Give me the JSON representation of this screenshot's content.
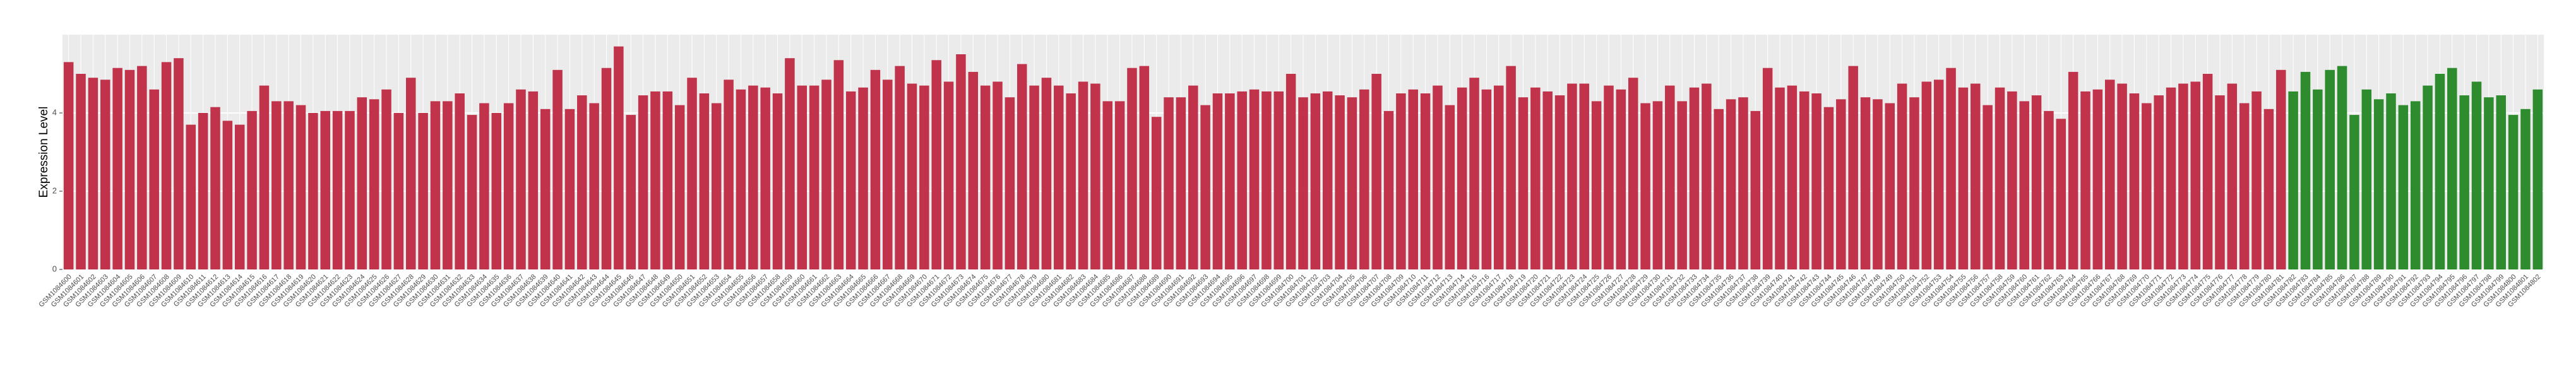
{
  "chart_data": {
    "type": "bar",
    "y_label": "Expression Level",
    "categories": [
      "GSM1084600",
      "GSM1084601",
      "GSM1084602",
      "GSM1084603",
      "GSM1084604",
      "GSM1084605",
      "GSM1084606",
      "GSM1084607",
      "GSM1084608",
      "GSM1084609",
      "GSM1084610",
      "GSM1084611",
      "GSM1084612",
      "GSM1084613",
      "GSM1084614",
      "GSM1084615",
      "GSM1084616",
      "GSM1084617",
      "GSM1084618",
      "GSM1084619",
      "GSM1084620",
      "GSM1084621",
      "GSM1084622",
      "GSM1084623",
      "GSM1084624",
      "GSM1084625",
      "GSM1084626",
      "GSM1084627",
      "GSM1084628",
      "GSM1084629",
      "GSM1084630",
      "GSM1084631",
      "GSM1084632",
      "GSM1084633",
      "GSM1084634",
      "GSM1084635",
      "GSM1084636",
      "GSM1084637",
      "GSM1084638",
      "GSM1084639",
      "GSM1084640",
      "GSM1084641",
      "GSM1084642",
      "GSM1084643",
      "GSM1084644",
      "GSM1084645",
      "GSM1084646",
      "GSM1084647",
      "GSM1084648",
      "GSM1084649",
      "GSM1084650",
      "GSM1084651",
      "GSM1084652",
      "GSM1084653",
      "GSM1084654",
      "GSM1084655",
      "GSM1084656",
      "GSM1084657",
      "GSM1084658",
      "GSM1084659",
      "GSM1084660",
      "GSM1084661",
      "GSM1084662",
      "GSM1084663",
      "GSM1084664",
      "GSM1084665",
      "GSM1084666",
      "GSM1084667",
      "GSM1084668",
      "GSM1084669",
      "GSM1084670",
      "GSM1084671",
      "GSM1084672",
      "GSM1084673",
      "GSM1084674",
      "GSM1084675",
      "GSM1084676",
      "GSM1084677",
      "GSM1084678",
      "GSM1084679",
      "GSM1084680",
      "GSM1084681",
      "GSM1084682",
      "GSM1084683",
      "GSM1084684",
      "GSM1084685",
      "GSM1084686",
      "GSM1084687",
      "GSM1084688",
      "GSM1084689",
      "GSM1084690",
      "GSM1084691",
      "GSM1084692",
      "GSM1084693",
      "GSM1084694",
      "GSM1084695",
      "GSM1084696",
      "GSM1084697",
      "GSM1084698",
      "GSM1084699",
      "GSM1084700",
      "GSM1084701",
      "GSM1084702",
      "GSM1084703",
      "GSM1084704",
      "GSM1084705",
      "GSM1084706",
      "GSM1084707",
      "GSM1084708",
      "GSM1084709",
      "GSM1084710",
      "GSM1084711",
      "GSM1084712",
      "GSM1084713",
      "GSM1084714",
      "GSM1084715",
      "GSM1084716",
      "GSM1084717",
      "GSM1084718",
      "GSM1084719",
      "GSM1084720",
      "GSM1084721",
      "GSM1084722",
      "GSM1084723",
      "GSM1084724",
      "GSM1084725",
      "GSM1084726",
      "GSM1084727",
      "GSM1084728",
      "GSM1084729",
      "GSM1084730",
      "GSM1084731",
      "GSM1084732",
      "GSM1084733",
      "GSM1084734",
      "GSM1084735",
      "GSM1084736",
      "GSM1084737",
      "GSM1084738",
      "GSM1084739",
      "GSM1084740",
      "GSM1084741",
      "GSM1084742",
      "GSM1084743",
      "GSM1084744",
      "GSM1084745",
      "GSM1084746",
      "GSM1084747",
      "GSM1084748",
      "GSM1084749",
      "GSM1084750",
      "GSM1084751",
      "GSM1084752",
      "GSM1084753",
      "GSM1084754",
      "GSM1084755",
      "GSM1084756",
      "GSM1084757",
      "GSM1084758",
      "GSM1084759",
      "GSM1084760",
      "GSM1084761",
      "GSM1084762",
      "GSM1084763",
      "GSM1084764",
      "GSM1084765",
      "GSM1084766",
      "GSM1084767",
      "GSM1084768",
      "GSM1084769",
      "GSM1084770",
      "GSM1084771",
      "GSM1084772",
      "GSM1084773",
      "GSM1084774",
      "GSM1084775",
      "GSM1084776",
      "GSM1084777",
      "GSM1084778",
      "GSM1084779",
      "GSM1084780",
      "GSM1084781",
      "GSM1084782",
      "GSM1084783",
      "GSM1084784",
      "GSM1084785",
      "GSM1084786",
      "GSM1084787",
      "GSM1084788",
      "GSM1084789",
      "GSM1084790",
      "GSM1084791",
      "GSM1084792",
      "GSM1084793",
      "GSM1084794",
      "GSM1084795",
      "GSM1084796",
      "GSM1084797",
      "GSM1084798",
      "GSM1084799",
      "GSM1084800",
      "GSM1084801",
      "GSM1084802"
    ],
    "values": [
      5.3,
      5.0,
      4.9,
      4.85,
      5.15,
      5.1,
      5.2,
      4.6,
      5.3,
      5.4,
      3.7,
      4.0,
      4.15,
      3.8,
      3.7,
      4.05,
      4.7,
      4.3,
      4.3,
      4.2,
      4.0,
      4.05,
      4.05,
      4.05,
      4.4,
      4.35,
      4.6,
      4.0,
      4.9,
      4.0,
      4.3,
      4.3,
      4.5,
      3.95,
      4.25,
      4.0,
      4.25,
      4.6,
      4.55,
      4.1,
      5.1,
      4.1,
      4.45,
      4.25,
      5.15,
      5.7,
      3.95,
      4.45,
      4.55,
      4.55,
      4.2,
      4.9,
      4.5,
      4.25,
      4.85,
      4.6,
      4.7,
      4.65,
      4.5,
      5.4,
      4.7,
      4.7,
      4.85,
      5.35,
      4.55,
      4.65,
      5.1,
      4.85,
      5.2,
      4.75,
      4.7,
      5.35,
      4.8,
      5.5,
      5.05,
      4.7,
      4.8,
      4.4,
      5.25,
      4.7,
      4.9,
      4.7,
      4.5,
      4.8,
      4.75,
      4.3,
      4.3,
      5.15,
      5.2,
      3.9,
      4.4,
      4.4,
      4.7,
      4.2,
      4.5,
      4.5,
      4.55,
      4.6,
      4.55,
      4.55,
      5.0,
      4.4,
      4.5,
      4.55,
      4.45,
      4.4,
      4.6,
      5.0,
      4.05,
      4.5,
      4.6,
      4.5,
      4.7,
      4.2,
      4.65,
      4.9,
      4.6,
      4.7,
      5.2,
      4.4,
      4.65,
      4.55,
      4.45,
      4.75,
      4.75,
      4.3,
      4.7,
      4.6,
      4.9,
      4.25,
      4.3,
      4.7,
      4.3,
      4.65,
      4.75,
      4.1,
      4.35,
      4.4,
      4.05,
      5.15,
      4.65,
      4.7,
      4.55,
      4.5,
      4.15,
      4.35,
      5.2,
      4.4,
      4.35,
      4.25,
      4.75,
      4.4,
      4.8,
      4.85,
      5.15,
      4.65,
      4.75,
      4.2,
      4.65,
      4.55,
      4.3,
      4.45,
      4.05,
      3.85,
      5.05,
      4.55,
      4.6,
      4.85,
      4.75,
      4.5,
      4.25,
      4.45,
      4.65,
      4.75,
      4.8,
      5.0,
      4.45,
      4.75,
      4.25,
      4.55,
      4.1,
      5.1,
      4.55,
      5.05,
      4.6,
      5.1,
      5.2,
      3.95,
      4.6,
      4.35,
      4.5,
      4.2,
      4.3,
      4.7,
      5.0,
      5.15,
      4.45,
      4.8,
      4.4,
      4.45,
      3.95,
      4.1,
      4.6
    ],
    "colors": [
      "#c0334a",
      "#c0334a",
      "#c0334a",
      "#c0334a",
      "#c0334a",
      "#c0334a",
      "#c0334a",
      "#c0334a",
      "#c0334a",
      "#c0334a",
      "#c0334a",
      "#c0334a",
      "#c0334a",
      "#c0334a",
      "#c0334a",
      "#c0334a",
      "#c0334a",
      "#c0334a",
      "#c0334a",
      "#c0334a",
      "#c0334a",
      "#c0334a",
      "#c0334a",
      "#c0334a",
      "#c0334a",
      "#c0334a",
      "#c0334a",
      "#c0334a",
      "#c0334a",
      "#c0334a",
      "#c0334a",
      "#c0334a",
      "#c0334a",
      "#c0334a",
      "#c0334a",
      "#c0334a",
      "#c0334a",
      "#c0334a",
      "#c0334a",
      "#c0334a",
      "#c0334a",
      "#c0334a",
      "#c0334a",
      "#c0334a",
      "#c0334a",
      "#c0334a",
      "#c0334a",
      "#c0334a",
      "#c0334a",
      "#c0334a",
      "#c0334a",
      "#c0334a",
      "#c0334a",
      "#c0334a",
      "#c0334a",
      "#c0334a",
      "#c0334a",
      "#c0334a",
      "#c0334a",
      "#c0334a",
      "#c0334a",
      "#c0334a",
      "#c0334a",
      "#c0334a",
      "#c0334a",
      "#c0334a",
      "#c0334a",
      "#c0334a",
      "#c0334a",
      "#c0334a",
      "#c0334a",
      "#c0334a",
      "#c0334a",
      "#c0334a",
      "#c0334a",
      "#c0334a",
      "#c0334a",
      "#c0334a",
      "#c0334a",
      "#c0334a",
      "#c0334a",
      "#c0334a",
      "#c0334a",
      "#c0334a",
      "#c0334a",
      "#c0334a",
      "#c0334a",
      "#c0334a",
      "#c0334a",
      "#c0334a",
      "#c0334a",
      "#c0334a",
      "#c0334a",
      "#c0334a",
      "#c0334a",
      "#c0334a",
      "#c0334a",
      "#c0334a",
      "#c0334a",
      "#c0334a",
      "#c0334a",
      "#c0334a",
      "#c0334a",
      "#c0334a",
      "#c0334a",
      "#c0334a",
      "#c0334a",
      "#c0334a",
      "#c0334a",
      "#c0334a",
      "#c0334a",
      "#c0334a",
      "#c0334a",
      "#c0334a",
      "#c0334a",
      "#c0334a",
      "#c0334a",
      "#c0334a",
      "#c0334a",
      "#c0334a",
      "#c0334a",
      "#c0334a",
      "#c0334a",
      "#c0334a",
      "#c0334a",
      "#c0334a",
      "#c0334a",
      "#c0334a",
      "#c0334a",
      "#c0334a",
      "#c0334a",
      "#c0334a",
      "#c0334a",
      "#c0334a",
      "#c0334a",
      "#c0334a",
      "#c0334a",
      "#c0334a",
      "#c0334a",
      "#c0334a",
      "#c0334a",
      "#c0334a",
      "#c0334a",
      "#c0334a",
      "#c0334a",
      "#c0334a",
      "#c0334a",
      "#c0334a",
      "#c0334a",
      "#c0334a",
      "#c0334a",
      "#c0334a",
      "#c0334a",
      "#c0334a",
      "#c0334a",
      "#c0334a",
      "#c0334a",
      "#c0334a",
      "#c0334a",
      "#c0334a",
      "#c0334a",
      "#c0334a",
      "#c0334a",
      "#c0334a",
      "#c0334a",
      "#c0334a",
      "#c0334a",
      "#c0334a",
      "#c0334a",
      "#c0334a",
      "#c0334a",
      "#c0334a",
      "#c0334a",
      "#c0334a",
      "#c0334a",
      "#c0334a",
      "#c0334a",
      "#c0334a",
      "#c0334a",
      "#c0334a",
      "#c0334a",
      "#c0334a",
      "#2e8b2e",
      "#2e8b2e",
      "#2e8b2e",
      "#2e8b2e",
      "#2e8b2e",
      "#2e8b2e",
      "#2e8b2e",
      "#2e8b2e",
      "#2e8b2e",
      "#2e8b2e",
      "#2e8b2e",
      "#2e8b2e",
      "#2e8b2e",
      "#2e8b2e",
      "#2e8b2e",
      "#2e8b2e",
      "#2e8b2e",
      "#2e8b2e",
      "#2e8b2e",
      "#2e8b2e",
      "#2e8b2e"
    ],
    "ylim": [
      0,
      6
    ],
    "yticks": [
      0,
      2,
      4
    ],
    "grid": true
  }
}
